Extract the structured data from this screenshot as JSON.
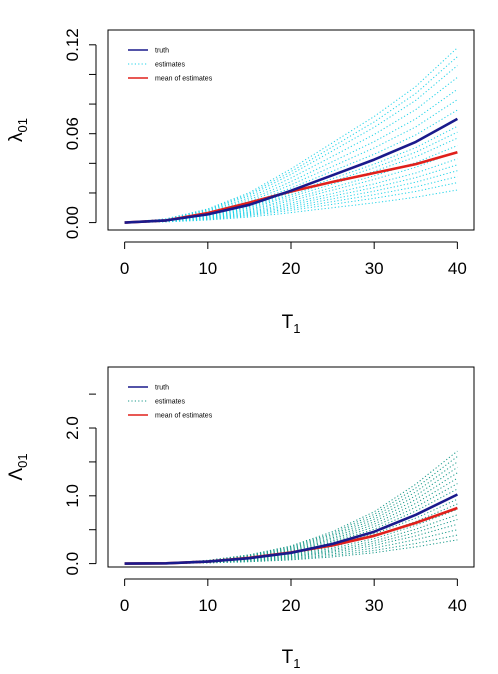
{
  "chart_data": [
    {
      "type": "line",
      "panel": "top",
      "xlabel": "T",
      "xlabel_sub": "1",
      "ylabel": "λ",
      "ylabel_sub": "01",
      "xlim": [
        -2,
        42
      ],
      "ylim": [
        -0.005,
        0.13
      ],
      "xticks": [
        0,
        10,
        20,
        30,
        40
      ],
      "xtick_labels": [
        "0",
        "10",
        "20",
        "30",
        "40"
      ],
      "yticks": [
        0.0,
        0.06,
        0.12
      ],
      "ytick_labels": [
        "0.00",
        "0.06",
        "0.12"
      ],
      "y_minor_ticks": [
        0.02,
        0.04,
        0.08,
        0.1
      ],
      "grid": false,
      "legend_position": "top-left",
      "legend": [
        {
          "label": "truth",
          "color": "#1a1a8c",
          "style": "solid"
        },
        {
          "label": "estimates",
          "color": "#22d3e8",
          "style": "dotted"
        },
        {
          "label": "mean of estimates",
          "color": "#e0201b",
          "style": "solid"
        }
      ],
      "truth": {
        "x": [
          0,
          5,
          10,
          15,
          20,
          25,
          30,
          35,
          40
        ],
        "y": [
          0.0,
          0.0015,
          0.0055,
          0.012,
          0.0215,
          0.032,
          0.0425,
          0.0545,
          0.07
        ]
      },
      "mean_of_estimates": {
        "x": [
          0,
          5,
          10,
          15,
          20,
          25,
          30,
          35,
          40
        ],
        "y": [
          0.0,
          0.0015,
          0.0065,
          0.0135,
          0.021,
          0.0275,
          0.0335,
          0.0395,
          0.0475
        ]
      },
      "estimates_endpoints_at_40": [
        0.022,
        0.027,
        0.031,
        0.035,
        0.039,
        0.043,
        0.048,
        0.052,
        0.057,
        0.061,
        0.065,
        0.07,
        0.076,
        0.083,
        0.09,
        0.098,
        0.106,
        0.112,
        0.118
      ],
      "estimates_color": "#22d3e8",
      "truth_color": "#1a1a8c",
      "mean_color": "#e0201b"
    },
    {
      "type": "line",
      "panel": "bottom",
      "xlabel": "T",
      "xlabel_sub": "1",
      "ylabel": "Λ",
      "ylabel_sub": "01",
      "xlim": [
        -2,
        42
      ],
      "ylim": [
        -0.05,
        2.9
      ],
      "xticks": [
        0,
        10,
        20,
        30,
        40
      ],
      "xtick_labels": [
        "0",
        "10",
        "20",
        "30",
        "40"
      ],
      "yticks": [
        0.0,
        1.0,
        2.0
      ],
      "ytick_labels": [
        "0.0",
        "1.0",
        "2.0"
      ],
      "y_minor_ticks": [
        0.5,
        1.5,
        2.5
      ],
      "grid": false,
      "legend_position": "top-left",
      "legend": [
        {
          "label": "truth",
          "color": "#1a1a8c",
          "style": "solid"
        },
        {
          "label": "estimates",
          "color": "#1a9a8a",
          "style": "dotted"
        },
        {
          "label": "mean of estimates",
          "color": "#e0201b",
          "style": "solid"
        }
      ],
      "truth": {
        "x": [
          0,
          5,
          10,
          15,
          20,
          25,
          30,
          35,
          40
        ],
        "y": [
          0.0,
          0.005,
          0.03,
          0.08,
          0.16,
          0.29,
          0.47,
          0.72,
          1.02
        ]
      },
      "mean_of_estimates": {
        "x": [
          0,
          5,
          10,
          15,
          20,
          25,
          30,
          35,
          40
        ],
        "y": [
          0.0,
          0.005,
          0.03,
          0.085,
          0.165,
          0.27,
          0.41,
          0.6,
          0.82
        ]
      },
      "estimates_endpoints_at_40": [
        0.35,
        0.42,
        0.5,
        0.58,
        0.65,
        0.72,
        0.8,
        0.88,
        0.95,
        1.02,
        1.1,
        1.18,
        1.26,
        1.34,
        1.42,
        1.5,
        1.58,
        1.66
      ],
      "estimates_color": "#1a9a8a",
      "truth_color": "#1a1a8c",
      "mean_color": "#e0201b"
    }
  ]
}
